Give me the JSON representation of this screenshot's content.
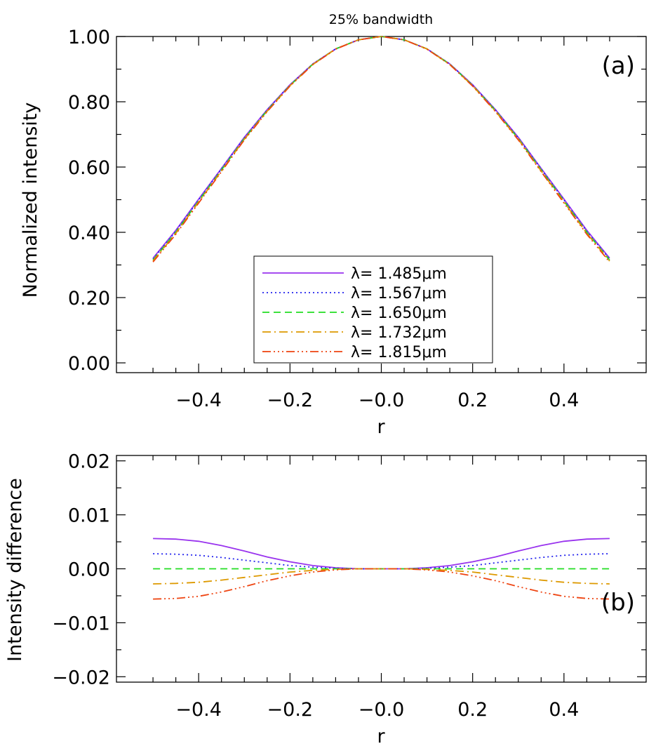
{
  "chart_data": [
    {
      "type": "line",
      "panel": "a",
      "title": "25% bandwidth",
      "panel_label": "(a)",
      "xlabel": "r",
      "ylabel": "Normalized intensity",
      "xlim": [
        -0.58,
        0.58
      ],
      "ylim": [
        -0.03,
        1.0
      ],
      "xticks": [
        -0.4,
        -0.2,
        0.0,
        0.2,
        0.4
      ],
      "xtick_labels": [
        "−0.4",
        "−0.2",
        "−0.0",
        "0.2",
        "0.4"
      ],
      "yticks": [
        0.0,
        0.2,
        0.4,
        0.6,
        0.8,
        1.0
      ],
      "ytick_labels": [
        "0.00",
        "0.20",
        "0.40",
        "0.60",
        "0.80",
        "1.00"
      ],
      "grid": false,
      "legend_position": "bottom-center",
      "x": [
        -0.5,
        -0.45,
        -0.4,
        -0.35,
        -0.3,
        -0.25,
        -0.2,
        -0.15,
        -0.1,
        -0.05,
        0.0,
        0.05,
        0.1,
        0.15,
        0.2,
        0.25,
        0.3,
        0.35,
        0.4,
        0.45,
        0.5
      ],
      "series": [
        {
          "name": "λ=  1.485μm",
          "color": "#9933ee",
          "dash": "solid",
          "values": [
            0.321,
            0.406,
            0.502,
            0.596,
            0.691,
            0.776,
            0.852,
            0.916,
            0.962,
            0.99,
            1.0,
            0.99,
            0.962,
            0.916,
            0.852,
            0.776,
            0.691,
            0.596,
            0.502,
            0.406,
            0.321
          ]
        },
        {
          "name": "λ=  1.567μm",
          "color": "#2222ee",
          "dash": "dotted",
          "values": [
            0.318,
            0.403,
            0.499,
            0.594,
            0.689,
            0.775,
            0.851,
            0.916,
            0.962,
            0.99,
            1.0,
            0.99,
            0.962,
            0.916,
            0.851,
            0.775,
            0.689,
            0.594,
            0.499,
            0.403,
            0.318
          ]
        },
        {
          "name": "λ=  1.650μm",
          "color": "#22dd22",
          "dash": "dashed",
          "values": [
            0.315,
            0.4,
            0.496,
            0.591,
            0.687,
            0.773,
            0.85,
            0.915,
            0.962,
            0.99,
            1.0,
            0.99,
            0.962,
            0.915,
            0.85,
            0.773,
            0.687,
            0.591,
            0.496,
            0.4,
            0.315
          ]
        },
        {
          "name": "λ=  1.732μm",
          "color": "#dd9900",
          "dash": "dashdot",
          "values": [
            0.312,
            0.397,
            0.493,
            0.588,
            0.685,
            0.771,
            0.849,
            0.914,
            0.962,
            0.99,
            1.0,
            0.99,
            0.962,
            0.914,
            0.849,
            0.771,
            0.685,
            0.588,
            0.493,
            0.397,
            0.312
          ]
        },
        {
          "name": "λ=  1.815μm",
          "color": "#ee4411",
          "dash": "dashdotdotdot",
          "values": [
            0.309,
            0.394,
            0.49,
            0.586,
            0.683,
            0.77,
            0.848,
            0.914,
            0.961,
            0.99,
            1.0,
            0.99,
            0.961,
            0.914,
            0.848,
            0.77,
            0.683,
            0.586,
            0.49,
            0.394,
            0.309
          ]
        }
      ]
    },
    {
      "type": "line",
      "panel": "b",
      "title": "",
      "panel_label": "(b)",
      "xlabel": "r",
      "ylabel": "Intensity difference",
      "xlim": [
        -0.58,
        0.58
      ],
      "ylim": [
        -0.021,
        0.021
      ],
      "xticks": [
        -0.4,
        -0.2,
        0.0,
        0.2,
        0.4
      ],
      "xtick_labels": [
        "−0.4",
        "−0.2",
        "−0.0",
        "0.2",
        "0.4"
      ],
      "yticks": [
        -0.02,
        -0.01,
        0.0,
        0.01,
        0.02
      ],
      "ytick_labels": [
        "−0.02",
        "−0.01",
        "0.00",
        "0.01",
        "0.02"
      ],
      "grid": false,
      "x": [
        -0.5,
        -0.45,
        -0.4,
        -0.35,
        -0.3,
        -0.25,
        -0.2,
        -0.15,
        -0.1,
        -0.05,
        0.0,
        0.05,
        0.1,
        0.15,
        0.2,
        0.25,
        0.3,
        0.35,
        0.4,
        0.45,
        0.5
      ],
      "series": [
        {
          "color": "#9933ee",
          "dash": "solid",
          "values": [
            0.0056,
            0.0055,
            0.0051,
            0.0043,
            0.0033,
            0.0022,
            0.0013,
            0.0006,
            0.0002,
            0.0,
            0.0,
            0.0,
            0.0002,
            0.0006,
            0.0013,
            0.0022,
            0.0033,
            0.0043,
            0.0051,
            0.0055,
            0.0056
          ]
        },
        {
          "color": "#2222ee",
          "dash": "dotted",
          "values": [
            0.0028,
            0.0027,
            0.0025,
            0.0021,
            0.0016,
            0.0011,
            0.0006,
            0.0003,
            0.0001,
            0.0,
            0.0,
            0.0,
            0.0001,
            0.0003,
            0.0006,
            0.0011,
            0.0016,
            0.0021,
            0.0025,
            0.0027,
            0.0028
          ]
        },
        {
          "color": "#22dd22",
          "dash": "dashed",
          "values": [
            0.0,
            0.0,
            0.0,
            0.0,
            0.0,
            0.0,
            0.0,
            0.0,
            0.0,
            0.0,
            0.0,
            0.0,
            0.0,
            0.0,
            0.0,
            0.0,
            0.0,
            0.0,
            0.0,
            0.0,
            0.0
          ]
        },
        {
          "color": "#dd9900",
          "dash": "dashdot",
          "values": [
            -0.0028,
            -0.0027,
            -0.0025,
            -0.0021,
            -0.0016,
            -0.0011,
            -0.0006,
            -0.0003,
            -0.0001,
            0.0,
            0.0,
            0.0,
            -0.0001,
            -0.0003,
            -0.0006,
            -0.0011,
            -0.0016,
            -0.0021,
            -0.0025,
            -0.0027,
            -0.0028
          ]
        },
        {
          "color": "#ee4411",
          "dash": "dashdotdotdot",
          "values": [
            -0.0056,
            -0.0055,
            -0.0051,
            -0.0043,
            -0.0033,
            -0.0022,
            -0.0013,
            -0.0006,
            -0.0002,
            0.0,
            0.0,
            0.0,
            -0.0002,
            -0.0006,
            -0.0013,
            -0.0022,
            -0.0033,
            -0.0043,
            -0.0051,
            -0.0055,
            -0.0056
          ]
        }
      ]
    }
  ]
}
